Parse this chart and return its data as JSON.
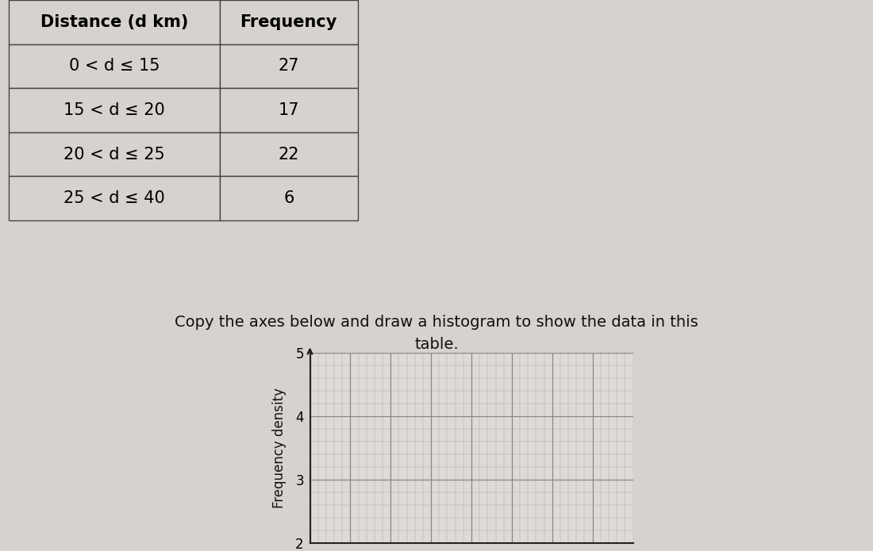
{
  "table_rows": [
    [
      "0 < d ≤ 15",
      "27"
    ],
    [
      "15 < d ≤ 20",
      "17"
    ],
    [
      "20 < d ≤ 25",
      "22"
    ],
    [
      "25 < d ≤ 40",
      "6"
    ]
  ],
  "col_labels": [
    "Distance (d km)",
    "Frequency"
  ],
  "instruction_line1": "Copy the axes below and draw a histogram to show the data in this",
  "instruction_line2": "table.",
  "ylabel": "Frequency density",
  "ylim": [
    2,
    5
  ],
  "xlim": [
    0,
    40
  ],
  "yticks_major": [
    2,
    3,
    4,
    5
  ],
  "xticks_major": [
    0,
    5,
    10,
    15,
    20,
    25,
    30,
    35,
    40
  ],
  "bg_color": "#d6d2ce",
  "plot_bg_color": "#dedad6",
  "grid_major_color": "#888880",
  "grid_minor_color": "#b0ada8",
  "table_edge_color": "#444444",
  "table_header_bg": "#d6d2ce",
  "table_cell_bg": "#d6d2ce"
}
